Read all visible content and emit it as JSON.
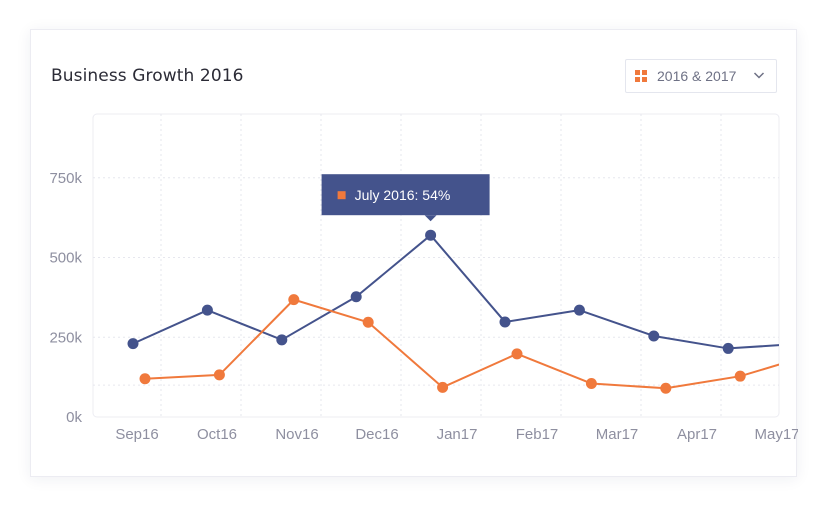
{
  "header": {
    "title": "Business Growth 2016"
  },
  "filter": {
    "selected": "2016 & 2017",
    "icon": "grid-icon",
    "chevron": "chevron-down-icon"
  },
  "colors": {
    "series_2016": "#44538c",
    "series_2017": "#f0793c",
    "tooltip_bg": "#44538c",
    "grid": "#e6e7ee",
    "tick_text": "#8e8fa0"
  },
  "tooltip": {
    "text": "July 2016: 54%"
  },
  "chart_data": {
    "type": "line",
    "title": "Business Growth 2016",
    "xlabel": "",
    "ylabel": "",
    "categories": [
      "Sep16",
      "Oct16",
      "Nov16",
      "Dec16",
      "Jan17",
      "Feb17",
      "Mar17",
      "Apr17",
      "May17"
    ],
    "yticks": [
      "0k",
      "250k",
      "500k",
      "750k"
    ],
    "ylim": [
      0,
      950
    ],
    "grid": true,
    "legend": "none",
    "series": [
      {
        "color": "#44538c",
        "points": [
          {
            "x": -0.05,
            "y": 230
          },
          {
            "x": 0.88,
            "y": 335
          },
          {
            "x": 1.81,
            "y": 242
          },
          {
            "x": 2.74,
            "y": 377
          },
          {
            "x": 3.67,
            "y": 570
          },
          {
            "x": 4.6,
            "y": 298
          },
          {
            "x": 5.53,
            "y": 335
          },
          {
            "x": 6.46,
            "y": 254
          },
          {
            "x": 7.39,
            "y": 215
          },
          {
            "x": 8.32,
            "y": 230
          },
          {
            "x": 8.5,
            "y": 249
          }
        ]
      },
      {
        "color": "#f0793c",
        "points": [
          {
            "x": 0.1,
            "y": 120
          },
          {
            "x": 1.03,
            "y": 132
          },
          {
            "x": 1.96,
            "y": 368
          },
          {
            "x": 2.89,
            "y": 297
          },
          {
            "x": 3.82,
            "y": 93
          },
          {
            "x": 4.75,
            "y": 198
          },
          {
            "x": 5.68,
            "y": 105
          },
          {
            "x": 6.61,
            "y": 90
          },
          {
            "x": 7.54,
            "y": 128
          },
          {
            "x": 8.5,
            "y": 200
          }
        ]
      }
    ],
    "highlight": {
      "label": "July 2016: 54%",
      "series": 0,
      "point": 4
    }
  }
}
